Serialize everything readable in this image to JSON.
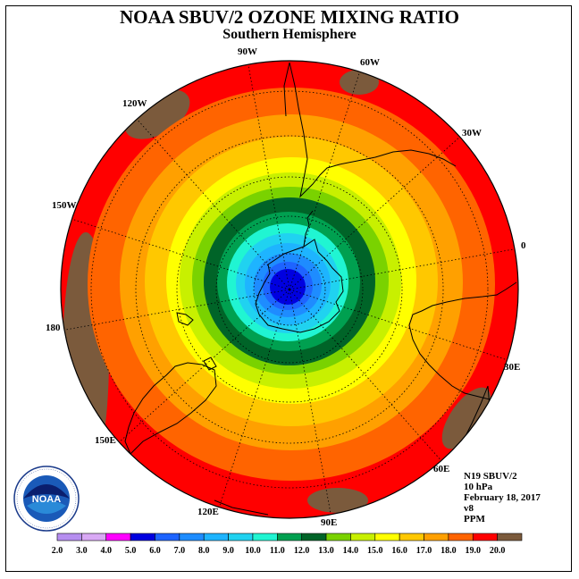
{
  "header": {
    "title": "NOAA SBUV/2 OZONE MIXING RATIO",
    "subtitle": "Southern Hemisphere"
  },
  "map": {
    "projection": "south-polar-stereographic",
    "longitude_labels": [
      {
        "id": "90W",
        "text": "90W"
      },
      {
        "id": "60W",
        "text": "60W"
      },
      {
        "id": "30W",
        "text": "30W"
      },
      {
        "id": "0",
        "text": "0"
      },
      {
        "id": "30E",
        "text": "30E"
      },
      {
        "id": "60E",
        "text": "60E"
      },
      {
        "id": "90E",
        "text": "90E"
      },
      {
        "id": "120E",
        "text": "120E"
      },
      {
        "id": "150E",
        "text": "150E"
      },
      {
        "id": "180",
        "text": "180"
      },
      {
        "id": "150W",
        "text": "150W"
      },
      {
        "id": "120W",
        "text": "120W"
      }
    ],
    "field_colors": {
      "land_patch": "#7b5a3c",
      "max": "#ff0000"
    }
  },
  "info": {
    "satellite": "N19 SBUV/2",
    "level": "10 hPa",
    "date": "February 18, 2017",
    "version": "v8",
    "units": "PPM"
  },
  "logo": {
    "text": "NOAA",
    "icon": "noaa-logo"
  },
  "colorbar": {
    "labels": [
      "2.0",
      "3.0",
      "4.0",
      "5.0",
      "6.0",
      "7.0",
      "8.0",
      "9.0",
      "10.0",
      "11.0",
      "12.0",
      "13.0",
      "14.0",
      "15.0",
      "16.0",
      "17.0",
      "18.0",
      "19.0",
      "20.0"
    ],
    "colors": [
      "#b68ef0",
      "#d9a9f5",
      "#ff00ff",
      "#0000e0",
      "#1e64ff",
      "#1e8cff",
      "#1eb4ff",
      "#20d2f0",
      "#20f5d2",
      "#00a050",
      "#006428",
      "#7ad200",
      "#c8f000",
      "#ffff00",
      "#ffc800",
      "#ffa000",
      "#ff6400",
      "#ff0000",
      "#7b5a3c"
    ]
  }
}
